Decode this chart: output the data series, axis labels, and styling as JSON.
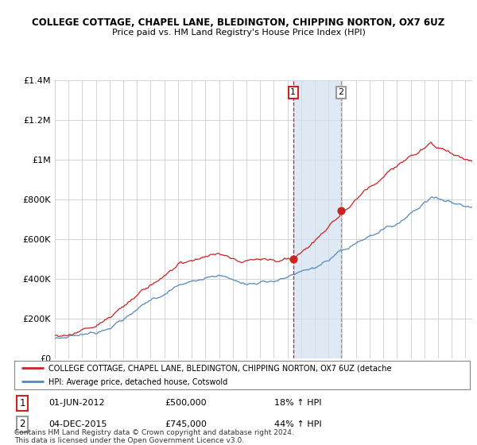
{
  "title": "COLLEGE COTTAGE, CHAPEL LANE, BLEDINGTON, CHIPPING NORTON, OX7 6UZ",
  "subtitle": "Price paid vs. HM Land Registry's House Price Index (HPI)",
  "legend_line1": "COLLEGE COTTAGE, CHAPEL LANE, BLEDINGTON, CHIPPING NORTON, OX7 6UZ (detache",
  "legend_line2": "HPI: Average price, detached house, Cotswold",
  "note": "Contains HM Land Registry data © Crown copyright and database right 2024.\nThis data is licensed under the Open Government Licence v3.0.",
  "sale1_label": "1",
  "sale2_label": "2",
  "sale1_date": "01-JUN-2012",
  "sale1_price": "£500,000",
  "sale1_hpi": "18% ↑ HPI",
  "sale2_date": "04-DEC-2015",
  "sale2_price": "£745,000",
  "sale2_hpi": "44% ↑ HPI",
  "red_line_color": "#cc2222",
  "blue_line_color": "#5588bb",
  "shading_color": "#d0e0f0",
  "vline1_color": "#cc2222",
  "vline2_color": "#999999",
  "grid_color": "#cccccc",
  "bg_color": "#ffffff",
  "ylim": [
    0,
    1400000
  ],
  "yticks": [
    0,
    200000,
    400000,
    600000,
    800000,
    1000000,
    1200000,
    1400000
  ],
  "ytick_labels": [
    "£0",
    "£200K",
    "£400K",
    "£600K",
    "£800K",
    "£1M",
    "£1.2M",
    "£1.4M"
  ],
  "xlim_start": 1995,
  "xlim_end": 2025.5,
  "sale1_t": 2012.417,
  "sale2_t": 2015.917,
  "sale1_price_val": 500000,
  "sale2_price_val": 745000
}
